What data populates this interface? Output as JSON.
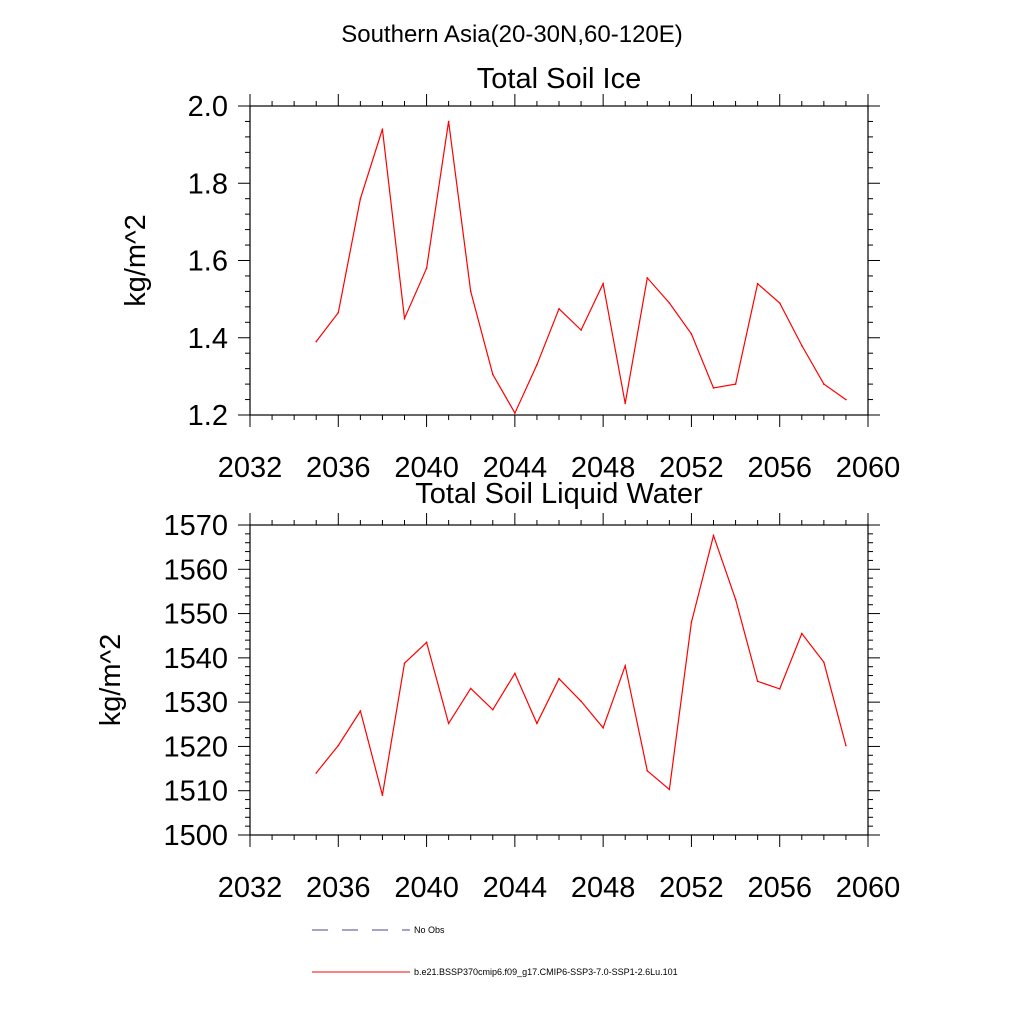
{
  "figure": {
    "main_title": "Southern Asia(20-30N,60-120E)"
  },
  "chart_data": [
    {
      "type": "line",
      "title": "Total Soil Ice",
      "ylabel": "kg/m^2",
      "xlabel": "",
      "xlim": [
        2032,
        2060
      ],
      "ylim": [
        1.2,
        2.0
      ],
      "x_ticks": [
        "2032",
        "2036",
        "2040",
        "2044",
        "2048",
        "2052",
        "2056",
        "2060"
      ],
      "y_ticks": [
        "1.2",
        "1.4",
        "1.6",
        "1.8",
        "2.0"
      ],
      "grid": false,
      "series": [
        {
          "name": "b.e21.BSSP370cmip6.f09_g17.CMIP6-SSP3-7.0-SSP1-2.6Lu.101",
          "color": "#ff0000",
          "x": [
            2035,
            2036,
            2037,
            2038,
            2039,
            2040,
            2041,
            2042,
            2043,
            2044,
            2045,
            2046,
            2047,
            2048,
            2049,
            2050,
            2051,
            2052,
            2053,
            2054,
            2055,
            2056,
            2057,
            2058,
            2059
          ],
          "y": [
            1.39,
            1.465,
            1.76,
            1.94,
            1.45,
            1.58,
            1.96,
            1.52,
            1.305,
            1.205,
            1.33,
            1.475,
            1.42,
            1.54,
            1.23,
            1.555,
            1.49,
            1.41,
            1.27,
            1.28,
            1.54,
            1.49,
            1.38,
            1.28,
            1.24
          ]
        }
      ]
    },
    {
      "type": "line",
      "title": "Total Soil Liquid Water",
      "ylabel": "kg/m^2",
      "xlabel": "",
      "xlim": [
        2032,
        2060
      ],
      "ylim": [
        1500,
        1570
      ],
      "x_ticks": [
        "2032",
        "2036",
        "2040",
        "2044",
        "2048",
        "2052",
        "2056",
        "2060"
      ],
      "y_ticks": [
        "1500",
        "1510",
        "1520",
        "1530",
        "1540",
        "1550",
        "1560",
        "1570"
      ],
      "grid": false,
      "series": [
        {
          "name": "b.e21.BSSP370cmip6.f09_g17.CMIP6-SSP3-7.0-SSP1-2.6Lu.101",
          "color": "#ff0000",
          "x": [
            2035,
            2036,
            2037,
            2038,
            2039,
            2040,
            2041,
            2042,
            2043,
            2044,
            2045,
            2046,
            2047,
            2048,
            2049,
            2050,
            2051,
            2052,
            2053,
            2054,
            2055,
            2056,
            2057,
            2058,
            2059
          ],
          "y": [
            1514,
            1520.2,
            1528,
            1509,
            1538.8,
            1543.5,
            1525.2,
            1533.1,
            1528.3,
            1536.5,
            1525.2,
            1535.3,
            1530.2,
            1524.2,
            1538.2,
            1514.5,
            1510.3,
            1548,
            1567.6,
            1553.2,
            1534.7,
            1533,
            1545.5,
            1539,
            1520.2
          ]
        }
      ]
    }
  ],
  "legend": {
    "placement": "bottom-left",
    "entries": [
      {
        "label": "No Obs",
        "color": "#4a4a8a",
        "style": "dashed"
      },
      {
        "label": "b.e21.BSSP370cmip6.f09_g17.CMIP6-SSP3-7.0-SSP1-2.6Lu.101",
        "color": "#ff0000",
        "style": "solid"
      }
    ]
  }
}
